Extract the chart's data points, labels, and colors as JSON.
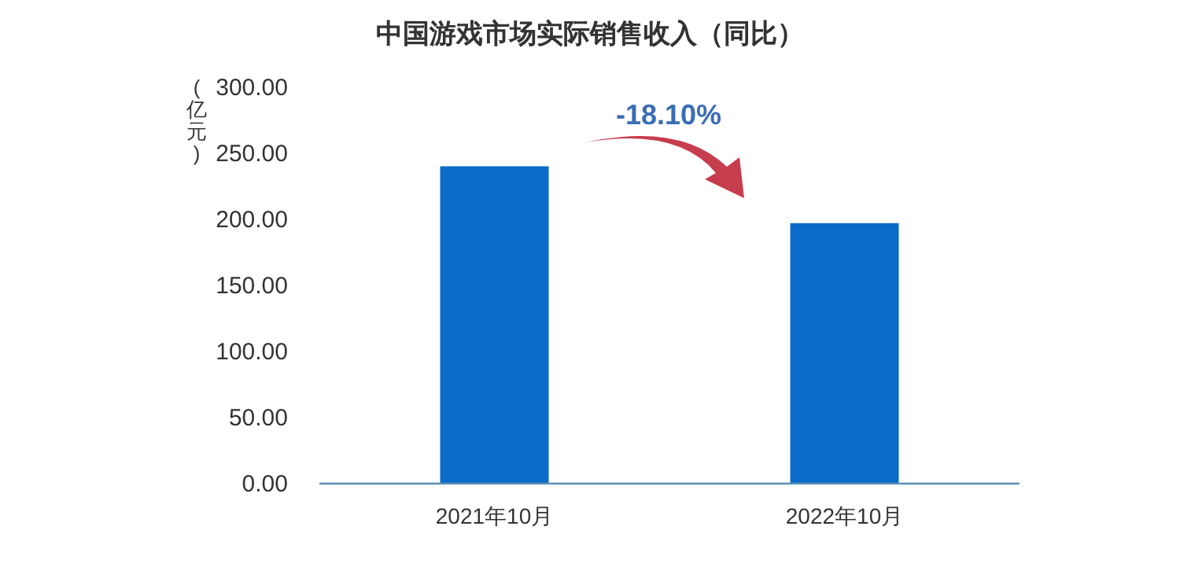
{
  "chart_data": {
    "type": "bar",
    "title": "中国游戏市场实际销售收入（同比）",
    "ylabel": "(亿元)",
    "categories": [
      "2021年10月",
      "2022年10月"
    ],
    "values": [
      240,
      197
    ],
    "color": "#0b6bc8",
    "ylim": [
      0,
      300
    ],
    "yticks": [
      {
        "value": 0,
        "label": "0.00"
      },
      {
        "value": 50,
        "label": "50.00"
      },
      {
        "value": 100,
        "label": "100.00"
      },
      {
        "value": 150,
        "label": "150.00"
      },
      {
        "value": 200,
        "label": "200.00"
      },
      {
        "value": 250,
        "label": "250.00"
      },
      {
        "value": 300,
        "label": "300.00"
      }
    ],
    "annotations": [
      "-18.10%"
    ],
    "grid": false
  }
}
